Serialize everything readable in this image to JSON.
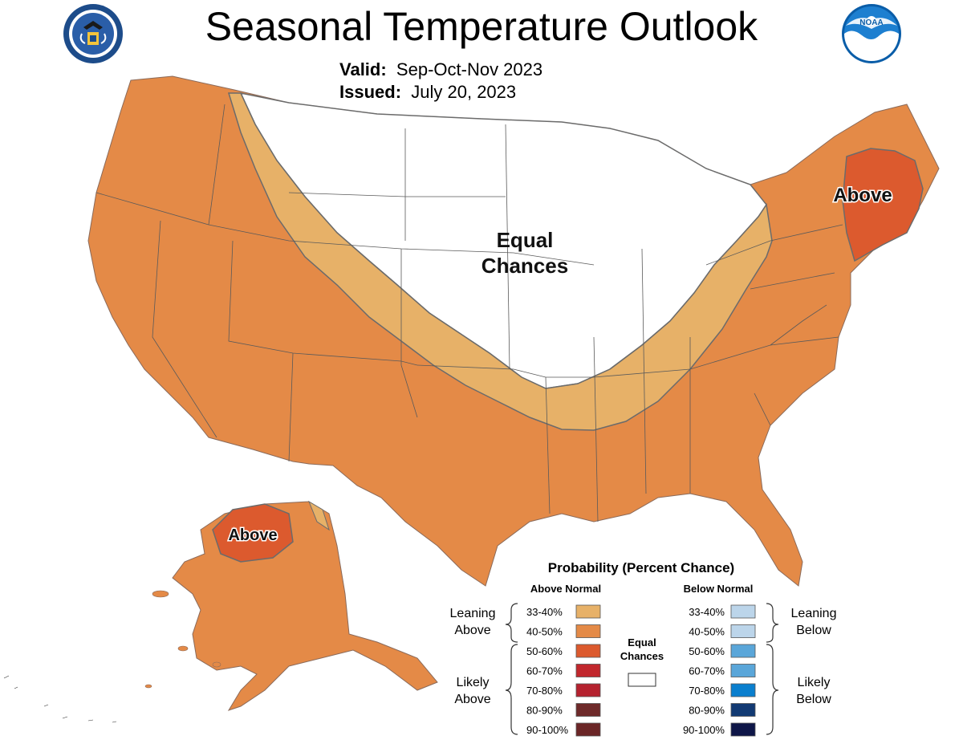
{
  "header": {
    "title": "Seasonal Temperature Outlook",
    "valid_label": "Valid:",
    "valid_value": "Sep-Oct-Nov 2023",
    "issued_label": "Issued:",
    "issued_value": "July 20, 2023"
  },
  "logos": {
    "left": "department-of-commerce-seal",
    "right": "noaa-logo"
  },
  "map": {
    "labels": {
      "equal_line1": "Equal",
      "equal_line2": "Chances",
      "above_northeast": "Above",
      "above_alaska": "Above"
    }
  },
  "colors": {
    "ec": "#ffffff",
    "above_33_40": "#e7b168",
    "above_40_50": "#e48a47",
    "above_50_60": "#dc5a2e",
    "above_60_70": "#c1272d",
    "above_70_80": "#b5222f",
    "above_80_90": "#6e2a2a",
    "above_90_100": "#6b2627",
    "below_33_40": "#bcd5ea",
    "below_40_50": "#bcd5ea",
    "below_50_60": "#5aa6d9",
    "below_60_70": "#5aa6d9",
    "below_70_80": "#0a7fce",
    "below_80_90": "#123a73",
    "below_90_100": "#0e1648",
    "boundary": "#6b6b6b"
  },
  "legend": {
    "title": "Probability (Percent Chance)",
    "above_header": "Above Normal",
    "below_header": "Below Normal",
    "equal_line1": "Equal",
    "equal_line2": "Chances",
    "leaning_above_1": "Leaning",
    "leaning_above_2": "Above",
    "likely_above_1": "Likely",
    "likely_above_2": "Above",
    "leaning_below_1": "Leaning",
    "leaning_below_2": "Below",
    "likely_below_1": "Likely",
    "likely_below_2": "Below",
    "above_ranges": [
      "33-40%",
      "40-50%",
      "50-60%",
      "60-70%",
      "70-80%",
      "80-90%",
      "90-100%"
    ],
    "below_ranges": [
      "33-40%",
      "40-50%",
      "50-60%",
      "60-70%",
      "70-80%",
      "80-90%",
      "90-100%"
    ]
  }
}
